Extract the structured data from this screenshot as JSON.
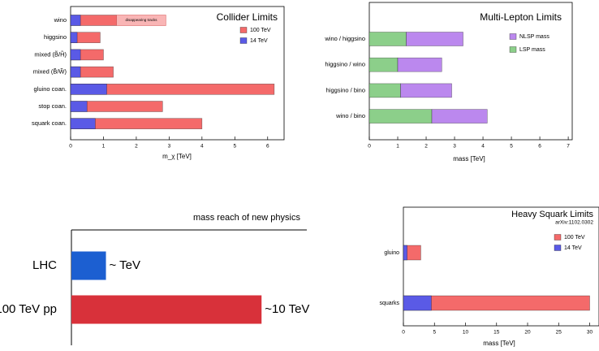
{
  "chart_data": [
    {
      "type": "bar",
      "title": "Collider Limits",
      "categories": [
        "wino",
        "higgsino",
        "mixed (B̃/H̃)",
        "mixed (B̃/W̃)",
        "gluino coan.",
        "stop coan.",
        "squark coan."
      ],
      "series": [
        {
          "name": "100 TeV",
          "color": "#f46a6a",
          "values": [
            1.4,
            0.9,
            1.0,
            1.3,
            6.2,
            2.8,
            4.0
          ]
        },
        {
          "name": "14 TeV",
          "color": "#5a5ae6",
          "values": [
            0.3,
            0.2,
            0.3,
            0.3,
            1.1,
            0.5,
            0.75
          ]
        }
      ],
      "annotations": [
        {
          "text": "disappearing tracks",
          "category": "wino",
          "x_range": [
            1.4,
            2.9
          ]
        }
      ],
      "xlabel": "m_χ [TeV]",
      "xlim": [
        0,
        6.5
      ],
      "xticks": [
        0,
        1,
        2,
        3,
        4,
        5,
        6
      ]
    },
    {
      "type": "range_bar",
      "title": "Multi-Lepton Limits",
      "categories": [
        "wino / higgsino",
        "higgsino / wino",
        "higgsino / bino",
        "wino / bino"
      ],
      "series": [
        {
          "name": "NLSP mass",
          "color": "#bb88ee",
          "values": [
            3.3,
            2.55,
            2.9,
            4.15
          ]
        },
        {
          "name": "LSP mass",
          "color": "#8ccf8a",
          "values": [
            1.3,
            1.0,
            1.1,
            2.2
          ]
        }
      ],
      "xlabel": "mass [TeV]",
      "xlim": [
        0,
        7.14
      ],
      "xticks": [
        0,
        1,
        2,
        3,
        4,
        5,
        6,
        7
      ]
    },
    {
      "type": "bar",
      "title": "mass reach of new physics",
      "categories": [
        "LHC",
        "100 TeV pp"
      ],
      "values": [
        1,
        10
      ],
      "value_labels": [
        "~ TeV",
        "~10 TeV"
      ],
      "colors": [
        "#1c5fd1",
        "#d8313a"
      ],
      "log_x": true,
      "xlim": [
        0.6,
        15
      ]
    },
    {
      "type": "bar",
      "title": "Heavy Squark Limits",
      "subtitle": "arXiv:1102.0302",
      "categories": [
        "gluino",
        "squarks"
      ],
      "series": [
        {
          "name": "100 TeV",
          "color": "#f46a6a",
          "values": [
            2.8,
            30
          ]
        },
        {
          "name": "14 TeV",
          "color": "#5a5ae6",
          "values": [
            0.6,
            4.5
          ]
        }
      ],
      "xlabel": "mass [TeV]",
      "xlim": [
        0,
        31.5
      ],
      "xticks": [
        0,
        5,
        10,
        15,
        20,
        25,
        30
      ]
    }
  ]
}
